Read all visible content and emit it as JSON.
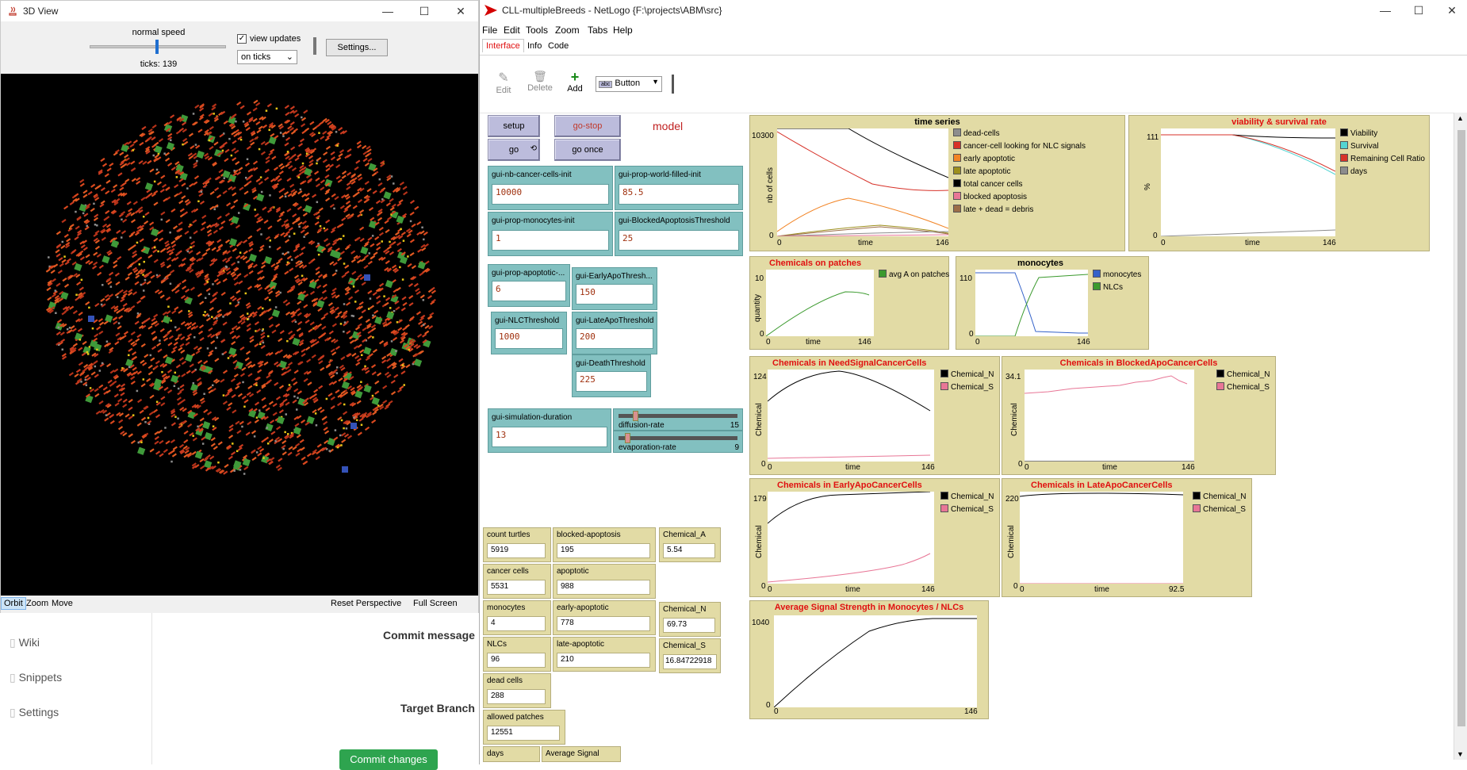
{
  "background_app": {
    "sidebar": [
      "Wiki",
      "Snippets",
      "Settings"
    ],
    "commit_message_label": "Commit message",
    "target_branch_label": "Target Branch",
    "commit_button": "Commit changes"
  },
  "view3d": {
    "title": "3D View",
    "speed_label": "normal speed",
    "ticks": "ticks: 139",
    "view_updates_label": "view updates",
    "view_updates_checked": true,
    "update_mode": "on ticks",
    "settings_button": "Settings...",
    "bottom": {
      "orbit": "Orbit",
      "zoom": "Zoom",
      "move": "Move",
      "reset": "Reset Perspective",
      "fullscreen": "Full Screen"
    }
  },
  "netlogo": {
    "title": "CLL-multipleBreeds - NetLogo {F:\\projects\\ABM\\src}",
    "menu": [
      "File",
      "Edit",
      "Tools",
      "Zoom",
      "Tabs",
      "Help"
    ],
    "tabs": [
      "Interface",
      "Info",
      "Code"
    ],
    "active_tab": "Interface",
    "toolbar": {
      "edit": "Edit",
      "delete": "Delete",
      "add": "Add",
      "widget_type": "Button"
    },
    "buttons": {
      "setup": "setup",
      "go_stop": "go-stop",
      "go": "go",
      "go_once": "go once"
    },
    "note": "model",
    "inputs": {
      "nb_cancer": {
        "label": "gui-nb-cancer-cells-init",
        "value": "10000"
      },
      "prop_world": {
        "label": "gui-prop-world-filled-init",
        "value": "85.5"
      },
      "prop_monocytes": {
        "label": "gui-prop-monocytes-init",
        "value": "1"
      },
      "blocked_threshold": {
        "label": "gui-BlockedApoptosisThreshold",
        "value": "25"
      },
      "prop_apoptotic": {
        "label": "gui-prop-apoptotic-...",
        "value": "6"
      },
      "early_apo": {
        "label": "gui-EarlyApoThresh...",
        "value": "150"
      },
      "nlc_threshold": {
        "label": "gui-NLCThreshold",
        "value": "1000"
      },
      "late_apo": {
        "label": "gui-LateApoThreshold",
        "value": "200"
      },
      "death_threshold": {
        "label": "gui-DeathThreshold",
        "value": "225"
      },
      "sim_duration": {
        "label": "gui-simulation-duration",
        "value": "13"
      }
    },
    "sliders": {
      "diffusion": {
        "label": "diffusion-rate",
        "value": "15",
        "fraction": 0.15
      },
      "evaporation": {
        "label": "evaporation-rate",
        "value": "9",
        "fraction": 0.09
      }
    },
    "monitors": {
      "count_turtles": {
        "label": "count turtles",
        "value": "5919"
      },
      "blocked_apoptosis": {
        "label": "blocked-apoptosis",
        "value": "195"
      },
      "chemical_a": {
        "label": "Chemical_A",
        "value": "5.54"
      },
      "cancer_cells": {
        "label": "cancer cells",
        "value": "5531"
      },
      "apoptotic": {
        "label": "apoptotic",
        "value": "988"
      },
      "monocytes": {
        "label": "monocytes",
        "value": "4"
      },
      "early_apoptotic": {
        "label": "early-apoptotic",
        "value": "778"
      },
      "chemical_n": {
        "label": "Chemical_N",
        "value": "69.73"
      },
      "nlcs": {
        "label": "NLCs",
        "value": "96"
      },
      "late_apoptotic": {
        "label": "late-apoptotic",
        "value": "210"
      },
      "chemical_s": {
        "label": "Chemical_S",
        "value": "16.84722918"
      },
      "dead_cells": {
        "label": "dead cells",
        "value": "288"
      },
      "allowed_patches": {
        "label": "allowed patches",
        "value": "12551"
      },
      "days": {
        "label": "days",
        "value": ""
      },
      "avg_signal": {
        "label": "Average Signal",
        "value": ""
      }
    },
    "plots": {
      "time_series": {
        "title": "time series",
        "ylabel": "nb of cells",
        "xlabel": "time",
        "ymax": "10300",
        "ymin": "0",
        "xmin": "0",
        "xmax": "146",
        "legend": [
          {
            "name": "dead-cells",
            "color": "#8d8d8d"
          },
          {
            "name": "cancer-cell looking for NLC signals",
            "color": "#d73229"
          },
          {
            "name": "early apoptotic",
            "color": "#f28425"
          },
          {
            "name": "late apoptotic",
            "color": "#9d8f1d"
          },
          {
            "name": "total cancer cells",
            "color": "#000000"
          },
          {
            "name": "blocked apoptosis",
            "color": "#e87696"
          },
          {
            "name": "late + dead = debris",
            "color": "#9d6e48"
          }
        ]
      },
      "viability": {
        "title": "viability & survival rate",
        "ylabel": "%",
        "xlabel": "time",
        "ymax": "111",
        "ymin": "0",
        "xmin": "0",
        "xmax": "146",
        "legend": [
          {
            "name": "Viability",
            "color": "#000000"
          },
          {
            "name": "Survival",
            "color": "#53d4d2"
          },
          {
            "name": "Remaining Cell Ratio",
            "color": "#d73229"
          },
          {
            "name": "days",
            "color": "#8d8d8d"
          }
        ]
      },
      "chem_patches": {
        "title": "Chemicals on patches",
        "ylabel": "quantity",
        "xlabel": "time",
        "ymax": "10",
        "ymin": "0",
        "xmin": "0",
        "xmax": "146",
        "legend": [
          {
            "name": "avg A on patches",
            "color": "#3b9a2e"
          }
        ]
      },
      "monocytes": {
        "title": "monocytes",
        "ylabel": "",
        "xlabel": "",
        "ymax": "110",
        "ymin": "0",
        "xmin": "0",
        "xmax": "146",
        "legend": [
          {
            "name": "monocytes",
            "color": "#3462c9"
          },
          {
            "name": "NLCs",
            "color": "#3b9a2e"
          }
        ]
      },
      "need_signal": {
        "title": "Chemicals in NeedSignalCancerCells",
        "ylabel": "Chemical",
        "xlabel": "time",
        "ymax": "124",
        "ymin": "0",
        "xmin": "0",
        "xmax": "146",
        "legend": [
          {
            "name": "Chemical_N",
            "color": "#000000"
          },
          {
            "name": "Chemical_S",
            "color": "#e87696"
          }
        ]
      },
      "blocked_apo": {
        "title": "Chemicals in BlockedApoCancerCells",
        "ylabel": "Chemical",
        "xlabel": "time",
        "ymax": "34.1",
        "ymin": "0",
        "xmin": "0",
        "xmax": "146",
        "legend": [
          {
            "name": "Chemical_N",
            "color": "#000000"
          },
          {
            "name": "Chemical_S",
            "color": "#e87696"
          }
        ]
      },
      "early_apo": {
        "title": "Chemicals in EarlyApoCancerCells",
        "ylabel": "Chemical",
        "xlabel": "time",
        "ymax": "179",
        "ymin": "0",
        "xmin": "0",
        "xmax": "146",
        "legend": [
          {
            "name": "Chemical_N",
            "color": "#000000"
          },
          {
            "name": "Chemical_S",
            "color": "#e87696"
          }
        ]
      },
      "late_apo": {
        "title": "Chemicals in LateApoCancerCells",
        "ylabel": "Chemical",
        "xlabel": "time",
        "ymax": "220",
        "ymin": "0",
        "xmin": "0",
        "xmax": "92.5",
        "legend": [
          {
            "name": "Chemical_N",
            "color": "#000000"
          },
          {
            "name": "Chemical_S",
            "color": "#e87696"
          }
        ]
      },
      "avg_signal": {
        "title": "Average Signal Strength in Monocytes / NLCs",
        "ylabel": "",
        "xlabel": "",
        "ymax": "1040",
        "ymin": "0",
        "xmin": "0",
        "xmax": "146",
        "legend": []
      }
    }
  },
  "colors": {
    "button": "#bcbcdc",
    "input": "#82c0c0",
    "monitor": "#e2dba5",
    "plot_title_red": "#e01010",
    "netlogo_logo": "#d40000"
  }
}
